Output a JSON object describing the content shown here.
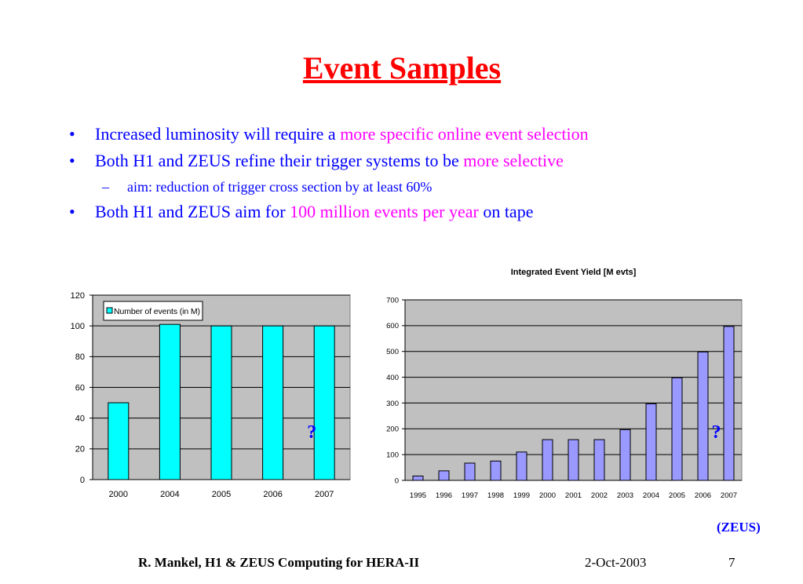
{
  "title": "Event Samples",
  "bullets": [
    {
      "level": 1,
      "runs": [
        {
          "text": "Increased luminosity will require a ",
          "color": "#0000ff"
        },
        {
          "text": "more specific online event selection",
          "color": "#ff00ff"
        }
      ]
    },
    {
      "level": 1,
      "runs": [
        {
          "text": "Both H1 and ZEUS refine their trigger systems to be ",
          "color": "#0000ff"
        },
        {
          "text": "more selective",
          "color": "#ff00ff"
        }
      ]
    },
    {
      "level": 2,
      "runs": [
        {
          "text": "aim: reduction of trigger cross section by at least 60%",
          "color": "#0000ff"
        }
      ]
    },
    {
      "level": 1,
      "runs": [
        {
          "text": "Both H1 and ZEUS aim for ",
          "color": "#0000ff"
        },
        {
          "text": "100 million events per year",
          "color": "#ff00ff"
        },
        {
          "text": " on tape",
          "color": "#0000ff"
        }
      ]
    }
  ],
  "chart_data": [
    {
      "type": "bar",
      "categories": [
        "2000",
        "2004",
        "2005",
        "2006",
        "2007"
      ],
      "series": [
        {
          "name": "Number of events (in M)",
          "color": "#00ffff",
          "values": [
            50,
            101,
            100,
            100,
            100
          ]
        }
      ],
      "ylim": [
        0,
        120
      ],
      "yticks": [
        0,
        20,
        40,
        60,
        80,
        100,
        120
      ],
      "grid": true,
      "legend": "top-left",
      "annotations": [
        "?"
      ]
    },
    {
      "type": "bar",
      "title": "Integrated Event Yield [M evts]",
      "categories": [
        "1995",
        "1996",
        "1997",
        "1998",
        "1999",
        "2000",
        "2001",
        "2002",
        "2003",
        "2004",
        "2005",
        "2006",
        "2007"
      ],
      "values": [
        17,
        37,
        67,
        75,
        110,
        158,
        158,
        158,
        197,
        297,
        398,
        498,
        597
      ],
      "color": "#9999ff",
      "ylim": [
        0,
        700
      ],
      "yticks": [
        0,
        100,
        200,
        300,
        400,
        500,
        600,
        700
      ],
      "grid": true,
      "annotations": [
        "?"
      ]
    }
  ],
  "source": "(ZEUS)",
  "footer": {
    "author": "R. Mankel, H1 & ZEUS Computing for HERA-II",
    "date": "2-Oct-2003",
    "page": "7"
  }
}
